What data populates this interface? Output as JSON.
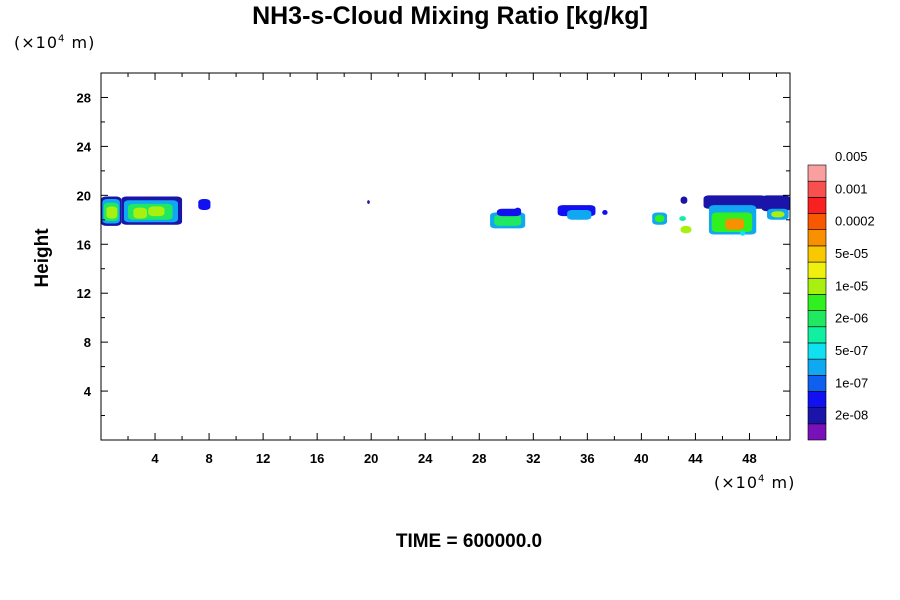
{
  "chart_data": {
    "type": "heatmap",
    "title": "NH3-s-Cloud Mixing Ratio [kg/kg]",
    "ylabel": "Height",
    "x_unit_prefix": "(×10",
    "x_unit_exp": "4",
    "x_unit_suffix": " m)",
    "y_unit_prefix": "(×10",
    "y_unit_exp": "4",
    "y_unit_suffix": " m)",
    "footer": "TIME = 600000.0",
    "xlim": [
      0,
      51
    ],
    "ylim": [
      0,
      30
    ],
    "x_ticks": [
      4,
      8,
      12,
      16,
      20,
      24,
      28,
      32,
      36,
      40,
      44,
      48
    ],
    "x_tick_labels": [
      "4",
      "8",
      "12",
      "16",
      "20",
      "24",
      "28",
      "32",
      "36",
      "40",
      "44",
      "48"
    ],
    "y_ticks": [
      4,
      8,
      12,
      16,
      20,
      24,
      28
    ],
    "y_tick_labels": [
      "4",
      "8",
      "12",
      "16",
      "20",
      "24",
      "28"
    ],
    "colorbar": {
      "levels": [
        "2e-08",
        "1e-07",
        "5e-07",
        "2e-06",
        "1e-05",
        "5e-05",
        "0.0002",
        "0.001",
        "0.005"
      ],
      "colors": [
        "#7a10b8",
        "#1a14a8",
        "#1010f0",
        "#1060f0",
        "#10a8f0",
        "#10e0f0",
        "#10f0a0",
        "#20e860",
        "#30f020",
        "#a8f010",
        "#f0f010",
        "#f8c800",
        "#f89000",
        "#f85800",
        "#f82020",
        "#f85050",
        "#f8a0a0"
      ]
    },
    "cloud_cells": [
      {
        "x": 0.0,
        "w": 1.5,
        "y": 17.5,
        "h": 2.4,
        "level": 1
      },
      {
        "x": 0.1,
        "w": 1.3,
        "y": 17.7,
        "h": 2.0,
        "level": 4
      },
      {
        "x": 0.2,
        "w": 1.1,
        "y": 17.9,
        "h": 1.5,
        "level": 7
      },
      {
        "x": 0.4,
        "w": 0.8,
        "y": 18.1,
        "h": 1.0,
        "level": 9
      },
      {
        "x": 1.5,
        "w": 4.5,
        "y": 17.6,
        "h": 2.3,
        "level": 1
      },
      {
        "x": 1.7,
        "w": 4.0,
        "y": 17.8,
        "h": 1.8,
        "level": 4
      },
      {
        "x": 2.0,
        "w": 3.3,
        "y": 18.0,
        "h": 1.3,
        "level": 7
      },
      {
        "x": 2.4,
        "w": 1.0,
        "y": 18.1,
        "h": 0.9,
        "level": 9
      },
      {
        "x": 3.5,
        "w": 1.2,
        "y": 18.3,
        "h": 0.8,
        "level": 9
      },
      {
        "x": 7.2,
        "w": 0.9,
        "y": 18.8,
        "h": 0.9,
        "level": 2
      },
      {
        "x": 19.7,
        "w": 0.2,
        "y": 19.3,
        "h": 0.3,
        "level": 1
      },
      {
        "x": 28.8,
        "w": 2.6,
        "y": 17.3,
        "h": 1.3,
        "level": 4
      },
      {
        "x": 29.1,
        "w": 2.0,
        "y": 17.5,
        "h": 0.9,
        "level": 7
      },
      {
        "x": 29.3,
        "w": 1.8,
        "y": 18.3,
        "h": 0.6,
        "level": 2
      },
      {
        "x": 30.6,
        "w": 0.5,
        "y": 18.5,
        "h": 0.5,
        "level": 2
      },
      {
        "x": 33.8,
        "w": 2.8,
        "y": 18.3,
        "h": 0.9,
        "level": 2
      },
      {
        "x": 34.5,
        "w": 1.8,
        "y": 18.0,
        "h": 0.8,
        "level": 4
      },
      {
        "x": 37.1,
        "w": 0.4,
        "y": 18.4,
        "h": 0.4,
        "level": 2
      },
      {
        "x": 40.8,
        "w": 1.1,
        "y": 17.6,
        "h": 1.0,
        "level": 4
      },
      {
        "x": 41.0,
        "w": 0.7,
        "y": 17.8,
        "h": 0.6,
        "level": 8
      },
      {
        "x": 42.9,
        "w": 0.5,
        "y": 19.3,
        "h": 0.6,
        "level": 1
      },
      {
        "x": 42.8,
        "w": 0.5,
        "y": 17.9,
        "h": 0.4,
        "level": 6
      },
      {
        "x": 42.9,
        "w": 0.8,
        "y": 16.9,
        "h": 0.6,
        "level": 9
      },
      {
        "x": 44.6,
        "w": 4.6,
        "y": 18.9,
        "h": 1.1,
        "level": 1
      },
      {
        "x": 45.0,
        "w": 3.5,
        "y": 16.8,
        "h": 2.4,
        "level": 4
      },
      {
        "x": 45.2,
        "w": 3.0,
        "y": 17.0,
        "h": 1.6,
        "level": 8
      },
      {
        "x": 46.2,
        "w": 1.4,
        "y": 17.2,
        "h": 0.9,
        "level": 12
      },
      {
        "x": 47.3,
        "w": 0.4,
        "y": 16.7,
        "h": 0.4,
        "level": 5
      },
      {
        "x": 48.9,
        "w": 2.1,
        "y": 18.7,
        "h": 1.3,
        "level": 1
      },
      {
        "x": 49.3,
        "w": 1.6,
        "y": 18.0,
        "h": 0.9,
        "level": 4
      },
      {
        "x": 49.6,
        "w": 1.0,
        "y": 18.2,
        "h": 0.5,
        "level": 9
      }
    ]
  }
}
